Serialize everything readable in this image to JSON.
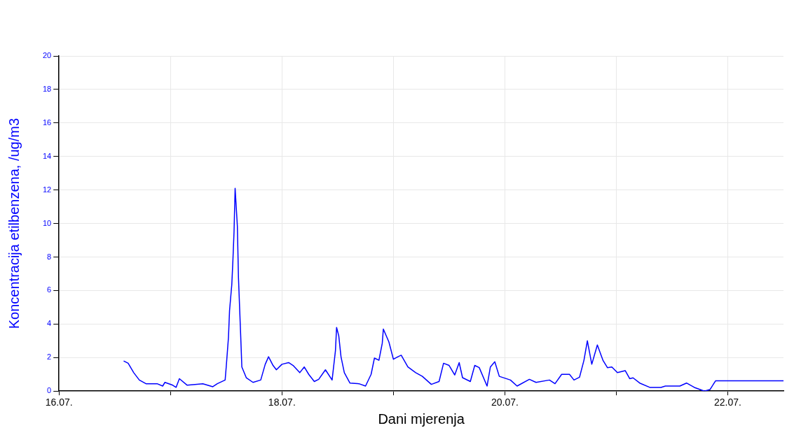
{
  "chart_data": {
    "type": "line",
    "xlabel": "Dani mjerenja",
    "ylabel": "Koncentracija etilbenzena, /ug/m3",
    "xlim": [
      "--07-16",
      "--07-22T12:00"
    ],
    "xticks": [
      {
        "value": "--07-16",
        "label": "16.07."
      },
      {
        "value": "--07-17",
        "label": null
      },
      {
        "value": "--07-18",
        "label": "18.07."
      },
      {
        "value": "--07-19",
        "label": null
      },
      {
        "value": "--07-20",
        "label": "20.07."
      },
      {
        "value": "--07-21",
        "label": null
      },
      {
        "value": "--07-22",
        "label": "22.07."
      }
    ],
    "ylim": [
      0,
      20
    ],
    "yticks": [
      0,
      2,
      4,
      6,
      8,
      10,
      12,
      14,
      16,
      18,
      20
    ],
    "grid": true,
    "legend": false,
    "marker": "none",
    "line_style": "solid",
    "series": [
      {
        "color": "#0000ff",
        "x": [
          "--07-16T13:55",
          "--07-16T14:53",
          "--07-16T16:05",
          "--07-16T17:17",
          "--07-16T18:43",
          "--07-16T21:07",
          "--07-16T22:19",
          "--07-16T22:48",
          "--07-17T00:29",
          "--07-17T01:12",
          "--07-17T01:55",
          "--07-17T03:36",
          "--07-17T06:58",
          "--07-17T09:07",
          "--07-17T10:05",
          "--07-17T11:46",
          "--07-17T12:00",
          "--07-17T12:29",
          "--07-17T12:43",
          "--07-17T13:12",
          "--07-17T13:26",
          "--07-17T13:41",
          "--07-17T13:55",
          "--07-17T14:24",
          "--07-17T14:38",
          "--07-17T15:07",
          "--07-17T15:22",
          "--07-17T16:19",
          "--07-17T17:46",
          "--07-17T19:26",
          "--07-17T20:24",
          "--07-17T21:07",
          "--07-17T22:05",
          "--07-17T22:48",
          "--07-18T00:00",
          "--07-18T01:26",
          "--07-18T02:24",
          "--07-18T03:50",
          "--07-18T04:48",
          "--07-18T05:46",
          "--07-18T06:58",
          "--07-18T07:55",
          "--07-18T09:22",
          "--07-18T10:48",
          "--07-18T11:31",
          "--07-18T11:46",
          "--07-18T12:14",
          "--07-18T12:43",
          "--07-18T13:26",
          "--07-18T14:38",
          "--07-18T16:34",
          "--07-18T18:00",
          "--07-18T19:12",
          "--07-18T19:55",
          "--07-18T20:53",
          "--07-18T21:36",
          "--07-18T21:50",
          "--07-18T23:02",
          "--07-19T00:00",
          "--07-19T00:58",
          "--07-19T01:41",
          "--07-19T03:07",
          "--07-19T04:48",
          "--07-19T06:14",
          "--07-19T08:10",
          "--07-19T09:50",
          "--07-19T10:48",
          "--07-19T12:00",
          "--07-19T13:12",
          "--07-19T14:10",
          "--07-19T14:53",
          "--07-19T16:34",
          "--07-19T17:31",
          "--07-19T18:29",
          "--07-19T20:10",
          "--07-19T20:53",
          "--07-19T21:50",
          "--07-19T22:48",
          "--07-20T01:12",
          "--07-20T02:38",
          "--07-20T05:17",
          "--07-20T06:43",
          "--07-20T09:36",
          "--07-20T10:48",
          "--07-20T12:14",
          "--07-20T13:55",
          "--07-20T14:53",
          "--07-20T16:05",
          "--07-20T17:02",
          "--07-20T17:46",
          "--07-20T18:43",
          "--07-20T19:55",
          "--07-20T21:07",
          "--07-20T22:05",
          "--07-20T23:02",
          "--07-21T00:14",
          "--07-21T01:55",
          "--07-21T02:53",
          "--07-21T03:36",
          "--07-21T05:02",
          "--07-21T07:12",
          "--07-21T09:36",
          "--07-21T10:34",
          "--07-21T13:41",
          "--07-21T15:07",
          "--07-21T16:48",
          "--07-21T18:58",
          "--07-21T20:10",
          "--07-21T21:22",
          "--07-22T12:00"
        ],
        "values": [
          1.8,
          1.66,
          1.1,
          0.66,
          0.44,
          0.44,
          0.3,
          0.52,
          0.35,
          0.22,
          0.74,
          0.35,
          0.44,
          0.26,
          0.44,
          0.66,
          1.44,
          3.2,
          4.8,
          6.35,
          7.75,
          9.5,
          12.1,
          9.85,
          6.8,
          3.3,
          1.44,
          0.8,
          0.52,
          0.66,
          1.6,
          2.05,
          1.53,
          1.27,
          1.6,
          1.7,
          1.53,
          1.1,
          1.44,
          1.0,
          0.57,
          0.7,
          1.27,
          0.66,
          2.4,
          3.8,
          3.3,
          2.05,
          1.1,
          0.48,
          0.44,
          0.3,
          1.0,
          1.97,
          1.84,
          2.85,
          3.7,
          2.93,
          1.9,
          2.05,
          2.14,
          1.44,
          1.1,
          0.88,
          0.4,
          0.57,
          1.66,
          1.53,
          0.96,
          1.7,
          0.8,
          0.57,
          1.53,
          1.4,
          0.3,
          1.44,
          1.75,
          0.88,
          0.66,
          0.3,
          0.7,
          0.52,
          0.66,
          0.44,
          1.0,
          1.0,
          0.66,
          0.83,
          1.84,
          3.0,
          1.6,
          2.75,
          1.84,
          1.4,
          1.44,
          1.1,
          1.22,
          0.74,
          0.79,
          0.48,
          0.22,
          0.22,
          0.3,
          0.3,
          0.48,
          0.22,
          0.0,
          0.09,
          0.61,
          0.61
        ]
      }
    ]
  }
}
